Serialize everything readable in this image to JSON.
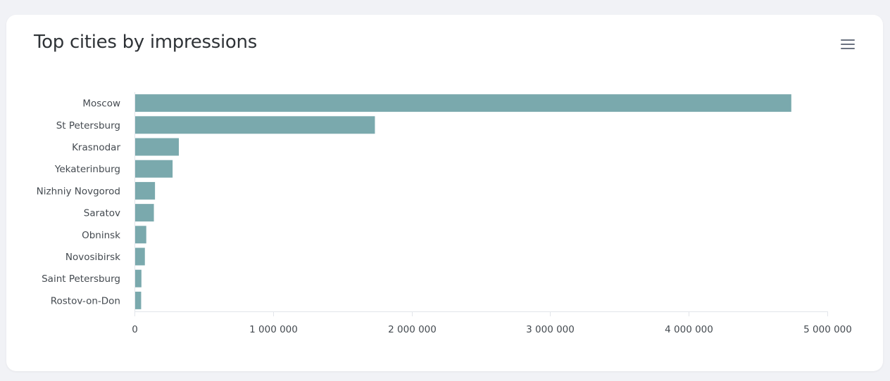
{
  "card": {
    "title": "Top cities by impressions",
    "menu_icon": "hamburger-menu-icon"
  },
  "chart_data": {
    "type": "bar",
    "orientation": "horizontal",
    "title": "Top cities by impressions",
    "xlabel": "",
    "ylabel": "",
    "categories": [
      "Moscow",
      "St Petersburg",
      "Krasnodar",
      "Yekaterinburg",
      "Nizhniy Novgorod",
      "Saratov",
      "Obninsk",
      "Novosibirsk",
      "Saint Petersburg",
      "Rostov-on-Don"
    ],
    "values": [
      4740000,
      1735000,
      320000,
      275000,
      148000,
      140000,
      85000,
      75000,
      50000,
      48000
    ],
    "xlim": [
      0,
      5000000
    ],
    "xticks": [
      0,
      1000000,
      2000000,
      3000000,
      4000000,
      5000000
    ],
    "xtick_labels": [
      "0",
      "1 000 000",
      "2 000 000",
      "3 000 000",
      "4 000 000",
      "5 000 000"
    ],
    "bar_color": "#7aa9ad",
    "axis_color": "#e2e5ea",
    "grid": false,
    "legend": "none"
  }
}
